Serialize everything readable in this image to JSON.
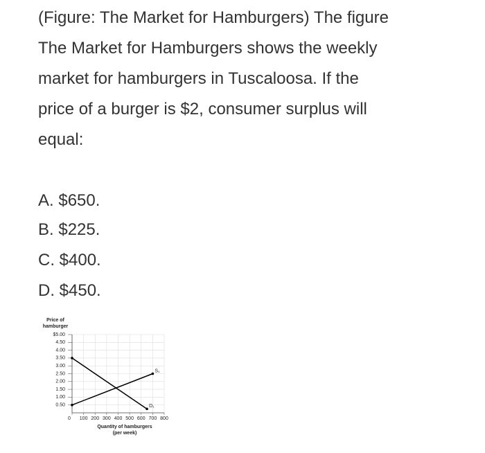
{
  "question": "(Figure: The Market for Hamburgers) The figure The Market for Hamburgers shows the weekly market for hamburgers in Tuscaloosa. If the price of a burger is $2, consumer surplus will equal:",
  "options": [
    "A. $650.",
    "B. $225.",
    "C. $400.",
    "D. $450."
  ],
  "chart_data": {
    "type": "line",
    "ylabel": [
      "Price of",
      "hamburger"
    ],
    "xlabel": [
      "Quantity of hamburgers",
      "(per week)"
    ],
    "xlim": [
      0,
      800
    ],
    "xticks": [
      0,
      100,
      200,
      300,
      400,
      500,
      600,
      700,
      800
    ],
    "ylim": [
      0,
      5
    ],
    "yticks": [
      {
        "value": 0.5,
        "label": "0.50"
      },
      {
        "value": 1,
        "label": "1.00"
      },
      {
        "value": 1.5,
        "label": "1.50"
      },
      {
        "value": 2,
        "label": "2.00"
      },
      {
        "value": 2.5,
        "label": "2.50"
      },
      {
        "value": 3,
        "label": "3.00"
      },
      {
        "value": 3.5,
        "label": "3.50"
      },
      {
        "value": 4,
        "label": "4.00"
      },
      {
        "value": 4.5,
        "label": "4.50"
      },
      {
        "value": 5,
        "label": "$5.00"
      }
    ],
    "grid": true,
    "series": [
      {
        "name": "S₁",
        "color": "#000000",
        "x": [
          0,
          700
        ],
        "values": [
          0.5,
          2.5
        ]
      },
      {
        "name": "D₁",
        "color": "#000000",
        "x": [
          0,
          650
        ],
        "values": [
          3.5,
          0.25
        ]
      }
    ]
  }
}
